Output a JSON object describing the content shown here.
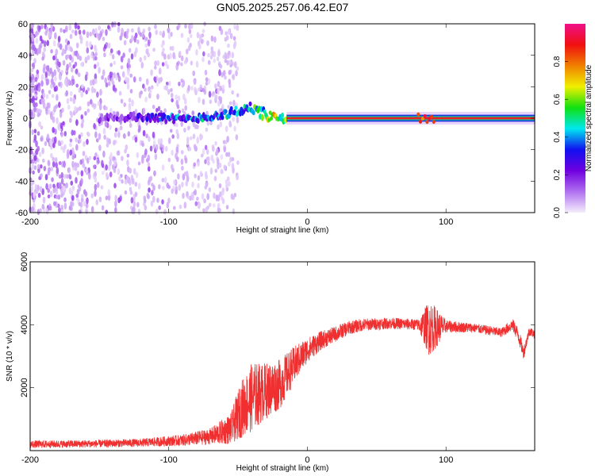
{
  "title": "GN05.2025.257.06.42.E07",
  "chart_data": [
    {
      "type": "heatmap",
      "title": "GN05.2025.257.06.42.E07",
      "xlabel": "Height of straight line (km)",
      "ylabel": "Frequency (Hz)",
      "xlim": [
        -200,
        164
      ],
      "ylim": [
        -60,
        60
      ],
      "xticks": [
        "-200",
        "-100",
        "0",
        "100"
      ],
      "xtick_values": [
        -200,
        -100,
        0,
        100
      ],
      "yticks": [
        "-60",
        "-40",
        "-20",
        "0",
        "20",
        "40",
        "60"
      ],
      "ytick_values": [
        -60,
        -40,
        -20,
        0,
        20,
        40,
        60
      ],
      "colorbar": {
        "label": "Normalized spectral amplitude",
        "range": [
          0,
          1
        ],
        "ticks": [
          "0.0",
          "0.2",
          "0.4",
          "0.6",
          "0.8"
        ],
        "tick_values": [
          0,
          0.2,
          0.4,
          0.6,
          0.8
        ],
        "colors": [
          "#f4eefc",
          "#b070f0",
          "#7000e0",
          "#1010f0",
          "#00e8f0",
          "#10e010",
          "#f0f000",
          "#f08000",
          "#f01010",
          "#f0108a"
        ]
      },
      "noise_region_km": [
        -200,
        -60
      ],
      "signal_band": [
        {
          "km": -150,
          "freq": 0,
          "amp": 0.15
        },
        {
          "km": -110,
          "freq": 1,
          "amp": 0.3
        },
        {
          "km": -90,
          "freq": -1,
          "amp": 0.4
        },
        {
          "km": -60,
          "freq": 2,
          "amp": 0.4
        },
        {
          "km": -42,
          "freq": 7,
          "amp": 0.45
        },
        {
          "km": -25,
          "freq": 0,
          "amp": 0.6
        },
        {
          "km": -15,
          "freq": 0,
          "amp": 0.9
        },
        {
          "km": 80,
          "freq": 0,
          "amp": 0.9
        },
        {
          "km": 88,
          "freq": 0,
          "amp": 0.95
        },
        {
          "km": 164,
          "freq": 0,
          "amp": 0.9
        }
      ]
    },
    {
      "type": "line",
      "xlabel": "Height of straight line (km)",
      "ylabel": "SNR (10 * v/v)",
      "xlim": [
        -200,
        164
      ],
      "ylim": [
        0,
        6000
      ],
      "xticks": [
        "-200",
        "-100",
        "0",
        "100"
      ],
      "xtick_values": [
        -200,
        -100,
        0,
        100
      ],
      "yticks": [
        "2000",
        "4000",
        "6000"
      ],
      "ytick_values": [
        2000,
        4000,
        6000
      ],
      "series": [
        {
          "name": "SNR",
          "color": "#f03030",
          "x": [
            -200,
            -150,
            -120,
            -90,
            -70,
            -55,
            -48,
            -40,
            -30,
            -20,
            -10,
            0,
            10,
            20,
            30,
            40,
            60,
            80,
            88,
            92,
            100,
            120,
            140,
            148,
            152,
            156,
            160,
            164
          ],
          "y": [
            200,
            220,
            250,
            330,
            450,
            700,
            1300,
            1700,
            1900,
            2100,
            2700,
            3200,
            3500,
            3700,
            3900,
            4000,
            4050,
            4000,
            3900,
            3900,
            3950,
            3900,
            3750,
            4000,
            3700,
            3100,
            3800,
            3700
          ],
          "noise": [
            120,
            120,
            130,
            180,
            260,
            500,
            900,
            1100,
            900,
            800,
            600,
            400,
            300,
            250,
            220,
            200,
            180,
            180,
            900,
            700,
            200,
            150,
            150,
            200,
            250,
            200,
            150,
            150
          ]
        }
      ]
    }
  ]
}
